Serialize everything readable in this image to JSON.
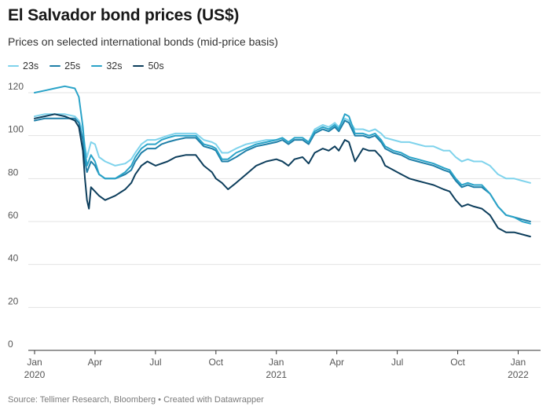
{
  "page": {
    "title": "El Salvador bond prices (US$)",
    "subtitle": "Prices on selected international bonds (mid-price basis)",
    "source": "Source: Tellimer Research, Bloomberg • Created with Datawrapper"
  },
  "chart_data": {
    "type": "line",
    "title": "El Salvador bond prices (US$)",
    "subtitle": "Prices on selected international bonds (mid-price basis)",
    "xlabel": "",
    "ylabel": "",
    "ylim": [
      0,
      120
    ],
    "yticks": [
      0,
      20,
      40,
      60,
      80,
      100,
      120
    ],
    "xlim": [
      0,
      24.8
    ],
    "x_unit": "months since Jan 2020",
    "xticks": [
      {
        "x": 0,
        "label": "Jan",
        "sublabel": "2020"
      },
      {
        "x": 3,
        "label": "Apr",
        "sublabel": ""
      },
      {
        "x": 6,
        "label": "Jul",
        "sublabel": ""
      },
      {
        "x": 9,
        "label": "Oct",
        "sublabel": ""
      },
      {
        "x": 12,
        "label": "Jan",
        "sublabel": "2021"
      },
      {
        "x": 15,
        "label": "Apr",
        "sublabel": ""
      },
      {
        "x": 18,
        "label": "Jul",
        "sublabel": ""
      },
      {
        "x": 21,
        "label": "Oct",
        "sublabel": ""
      },
      {
        "x": 24,
        "label": "Jan",
        "sublabel": "2022"
      }
    ],
    "grid": true,
    "legend": "top-left",
    "series": [
      {
        "name": "23s",
        "color": "#7fd3ec",
        "points": [
          [
            0,
            109
          ],
          [
            0.5,
            110
          ],
          [
            1,
            110
          ],
          [
            1.5,
            110
          ],
          [
            2,
            109
          ],
          [
            2.2,
            107
          ],
          [
            2.4,
            102
          ],
          [
            2.5,
            95
          ],
          [
            2.6,
            90
          ],
          [
            2.8,
            97
          ],
          [
            3,
            96
          ],
          [
            3.2,
            90
          ],
          [
            3.5,
            88
          ],
          [
            4,
            86
          ],
          [
            4.5,
            87
          ],
          [
            4.8,
            89
          ],
          [
            5,
            92
          ],
          [
            5.3,
            96
          ],
          [
            5.6,
            98
          ],
          [
            6,
            98
          ],
          [
            6.3,
            99
          ],
          [
            6.6,
            100
          ],
          [
            7,
            101
          ],
          [
            7.5,
            101
          ],
          [
            8,
            101
          ],
          [
            8.4,
            98
          ],
          [
            8.8,
            97
          ],
          [
            9,
            96
          ],
          [
            9.3,
            92
          ],
          [
            9.6,
            92
          ],
          [
            10,
            94
          ],
          [
            10.5,
            96
          ],
          [
            11,
            97
          ],
          [
            11.5,
            98
          ],
          [
            12,
            98
          ],
          [
            12.3,
            99
          ],
          [
            12.6,
            97
          ],
          [
            12.9,
            99
          ],
          [
            13.3,
            99
          ],
          [
            13.6,
            97
          ],
          [
            13.9,
            103
          ],
          [
            14.3,
            105
          ],
          [
            14.6,
            104
          ],
          [
            14.9,
            106
          ],
          [
            15.1,
            104
          ],
          [
            15.4,
            108
          ],
          [
            15.6,
            107
          ],
          [
            15.9,
            103
          ],
          [
            16.3,
            103
          ],
          [
            16.6,
            102
          ],
          [
            16.9,
            103
          ],
          [
            17.2,
            101
          ],
          [
            17.4,
            99
          ],
          [
            17.8,
            98
          ],
          [
            18.2,
            97
          ],
          [
            18.6,
            97
          ],
          [
            19,
            96
          ],
          [
            19.4,
            95
          ],
          [
            19.8,
            95
          ],
          [
            20.3,
            93
          ],
          [
            20.6,
            93
          ],
          [
            20.9,
            90
          ],
          [
            21.2,
            88
          ],
          [
            21.5,
            89
          ],
          [
            21.8,
            88
          ],
          [
            22.2,
            88
          ],
          [
            22.6,
            86
          ],
          [
            23,
            82
          ],
          [
            23.4,
            80
          ],
          [
            23.8,
            80
          ],
          [
            24.2,
            79
          ],
          [
            24.6,
            78
          ]
        ]
      },
      {
        "name": "25s",
        "color": "#1f7fa8",
        "points": [
          [
            0,
            107
          ],
          [
            0.5,
            108
          ],
          [
            1,
            108
          ],
          [
            1.5,
            108
          ],
          [
            2,
            108
          ],
          [
            2.2,
            106
          ],
          [
            2.4,
            98
          ],
          [
            2.5,
            88
          ],
          [
            2.6,
            83
          ],
          [
            2.8,
            88
          ],
          [
            3,
            86
          ],
          [
            3.2,
            82
          ],
          [
            3.5,
            80
          ],
          [
            4,
            80
          ],
          [
            4.5,
            82
          ],
          [
            4.8,
            84
          ],
          [
            5,
            88
          ],
          [
            5.3,
            92
          ],
          [
            5.6,
            94
          ],
          [
            6,
            94
          ],
          [
            6.3,
            96
          ],
          [
            6.6,
            97
          ],
          [
            7,
            98
          ],
          [
            7.5,
            99
          ],
          [
            8,
            99
          ],
          [
            8.4,
            95
          ],
          [
            8.8,
            94
          ],
          [
            9,
            93
          ],
          [
            9.3,
            88
          ],
          [
            9.6,
            88
          ],
          [
            10,
            90
          ],
          [
            10.5,
            93
          ],
          [
            11,
            95
          ],
          [
            11.5,
            96
          ],
          [
            12,
            97
          ],
          [
            12.3,
            98
          ],
          [
            12.6,
            96
          ],
          [
            12.9,
            98
          ],
          [
            13.3,
            98
          ],
          [
            13.6,
            96
          ],
          [
            13.9,
            101
          ],
          [
            14.3,
            103
          ],
          [
            14.6,
            102
          ],
          [
            14.9,
            104
          ],
          [
            15.1,
            102
          ],
          [
            15.4,
            107
          ],
          [
            15.6,
            106
          ],
          [
            15.9,
            100
          ],
          [
            16.3,
            100
          ],
          [
            16.6,
            99
          ],
          [
            16.9,
            100
          ],
          [
            17.2,
            97
          ],
          [
            17.4,
            94
          ],
          [
            17.8,
            92
          ],
          [
            18.2,
            91
          ],
          [
            18.6,
            89
          ],
          [
            19,
            88
          ],
          [
            19.4,
            87
          ],
          [
            19.8,
            86
          ],
          [
            20.3,
            84
          ],
          [
            20.6,
            83
          ],
          [
            20.9,
            79
          ],
          [
            21.2,
            76
          ],
          [
            21.5,
            77
          ],
          [
            21.8,
            76
          ],
          [
            22.2,
            76
          ],
          [
            22.6,
            73
          ],
          [
            23,
            67
          ],
          [
            23.4,
            63
          ],
          [
            23.8,
            62
          ],
          [
            24.2,
            61
          ],
          [
            24.6,
            60
          ]
        ]
      },
      {
        "name": "32s",
        "color": "#2aa3c8",
        "points": [
          [
            0,
            120
          ],
          [
            0.5,
            121
          ],
          [
            1,
            122
          ],
          [
            1.5,
            123
          ],
          [
            2,
            122
          ],
          [
            2.2,
            118
          ],
          [
            2.4,
            104
          ],
          [
            2.5,
            93
          ],
          [
            2.6,
            86
          ],
          [
            2.8,
            91
          ],
          [
            3,
            88
          ],
          [
            3.2,
            82
          ],
          [
            3.5,
            80
          ],
          [
            4,
            80
          ],
          [
            4.5,
            83
          ],
          [
            4.8,
            86
          ],
          [
            5,
            90
          ],
          [
            5.3,
            94
          ],
          [
            5.6,
            96
          ],
          [
            6,
            96
          ],
          [
            6.3,
            98
          ],
          [
            6.6,
            99
          ],
          [
            7,
            100
          ],
          [
            7.5,
            100
          ],
          [
            8,
            100
          ],
          [
            8.4,
            96
          ],
          [
            8.8,
            95
          ],
          [
            9,
            94
          ],
          [
            9.3,
            89
          ],
          [
            9.6,
            89
          ],
          [
            10,
            92
          ],
          [
            10.5,
            94
          ],
          [
            11,
            96
          ],
          [
            11.5,
            97
          ],
          [
            12,
            98
          ],
          [
            12.3,
            99
          ],
          [
            12.6,
            97
          ],
          [
            12.9,
            99
          ],
          [
            13.3,
            99
          ],
          [
            13.6,
            97
          ],
          [
            13.9,
            102
          ],
          [
            14.3,
            104
          ],
          [
            14.6,
            103
          ],
          [
            14.9,
            105
          ],
          [
            15.1,
            103
          ],
          [
            15.4,
            110
          ],
          [
            15.6,
            109
          ],
          [
            15.9,
            101
          ],
          [
            16.3,
            101
          ],
          [
            16.6,
            100
          ],
          [
            16.9,
            101
          ],
          [
            17.2,
            98
          ],
          [
            17.4,
            95
          ],
          [
            17.8,
            93
          ],
          [
            18.2,
            92
          ],
          [
            18.6,
            90
          ],
          [
            19,
            89
          ],
          [
            19.4,
            88
          ],
          [
            19.8,
            87
          ],
          [
            20.3,
            85
          ],
          [
            20.6,
            84
          ],
          [
            20.9,
            80
          ],
          [
            21.2,
            77
          ],
          [
            21.5,
            78
          ],
          [
            21.8,
            77
          ],
          [
            22.2,
            77
          ],
          [
            22.6,
            73
          ],
          [
            23,
            67
          ],
          [
            23.4,
            63
          ],
          [
            23.8,
            62
          ],
          [
            24.2,
            60
          ],
          [
            24.6,
            59
          ]
        ]
      },
      {
        "name": "50s",
        "color": "#0d3e5c",
        "points": [
          [
            0,
            108
          ],
          [
            0.5,
            109
          ],
          [
            1,
            110
          ],
          [
            1.5,
            109
          ],
          [
            2,
            107
          ],
          [
            2.2,
            104
          ],
          [
            2.4,
            93
          ],
          [
            2.5,
            80
          ],
          [
            2.6,
            70
          ],
          [
            2.7,
            66
          ],
          [
            2.8,
            76
          ],
          [
            3,
            74
          ],
          [
            3.2,
            72
          ],
          [
            3.5,
            70
          ],
          [
            4,
            72
          ],
          [
            4.5,
            75
          ],
          [
            4.8,
            78
          ],
          [
            5,
            82
          ],
          [
            5.3,
            86
          ],
          [
            5.6,
            88
          ],
          [
            6,
            86
          ],
          [
            6.3,
            87
          ],
          [
            6.6,
            88
          ],
          [
            7,
            90
          ],
          [
            7.5,
            91
          ],
          [
            8,
            91
          ],
          [
            8.4,
            86
          ],
          [
            8.8,
            83
          ],
          [
            9,
            80
          ],
          [
            9.3,
            78
          ],
          [
            9.6,
            75
          ],
          [
            10,
            78
          ],
          [
            10.5,
            82
          ],
          [
            11,
            86
          ],
          [
            11.5,
            88
          ],
          [
            12,
            89
          ],
          [
            12.3,
            88
          ],
          [
            12.6,
            86
          ],
          [
            12.9,
            89
          ],
          [
            13.3,
            90
          ],
          [
            13.6,
            87
          ],
          [
            13.9,
            92
          ],
          [
            14.3,
            94
          ],
          [
            14.6,
            93
          ],
          [
            14.9,
            95
          ],
          [
            15.1,
            93
          ],
          [
            15.4,
            98
          ],
          [
            15.6,
            97
          ],
          [
            15.9,
            88
          ],
          [
            16.3,
            94
          ],
          [
            16.6,
            93
          ],
          [
            16.9,
            93
          ],
          [
            17.2,
            90
          ],
          [
            17.4,
            86
          ],
          [
            17.8,
            84
          ],
          [
            18.2,
            82
          ],
          [
            18.6,
            80
          ],
          [
            19,
            79
          ],
          [
            19.4,
            78
          ],
          [
            19.8,
            77
          ],
          [
            20.3,
            75
          ],
          [
            20.6,
            74
          ],
          [
            20.9,
            70
          ],
          [
            21.2,
            67
          ],
          [
            21.5,
            68
          ],
          [
            21.8,
            67
          ],
          [
            22.2,
            66
          ],
          [
            22.6,
            63
          ],
          [
            23,
            57
          ],
          [
            23.4,
            55
          ],
          [
            23.8,
            55
          ],
          [
            24.2,
            54
          ],
          [
            24.6,
            53
          ]
        ]
      }
    ]
  }
}
